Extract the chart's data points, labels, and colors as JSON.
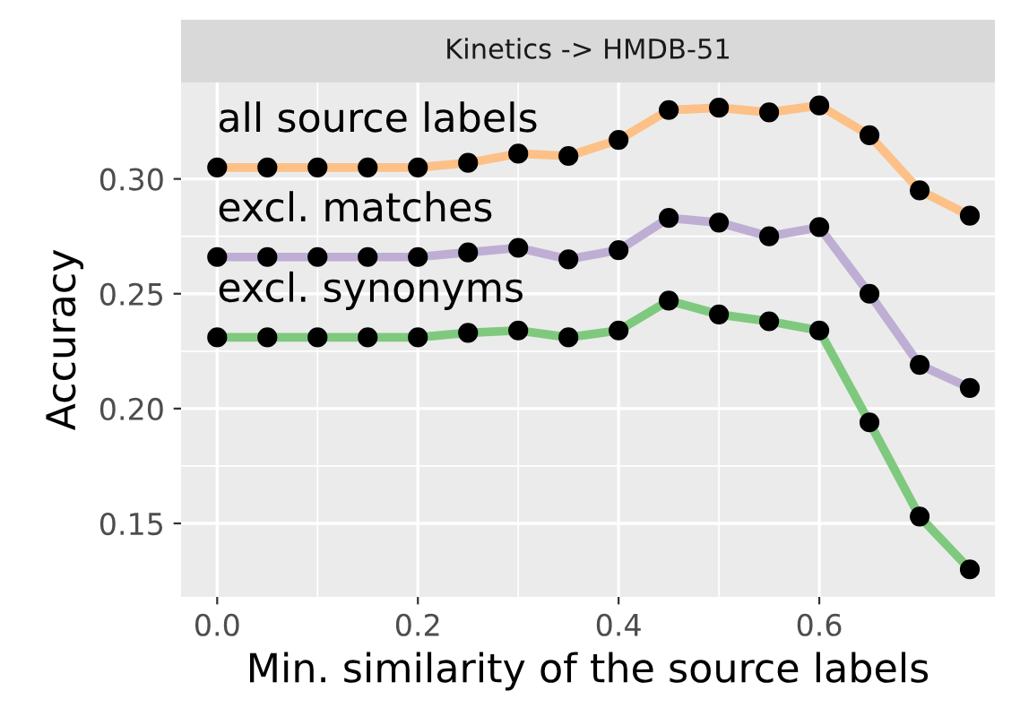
{
  "chart_data": {
    "type": "line",
    "title": "Kinetics -> HMDB-51",
    "xlabel": "Min. similarity of the source labels",
    "ylabel": "Accuracy",
    "x": [
      0,
      0.05,
      0.1,
      0.15,
      0.2,
      0.25,
      0.3,
      0.35,
      0.4,
      0.45,
      0.5,
      0.55,
      0.6,
      0.65,
      0.7,
      0.75
    ],
    "series": [
      {
        "name": "all source labels",
        "color": "#fdc086",
        "values": [
          0.305,
          0.305,
          0.305,
          0.305,
          0.305,
          0.307,
          0.311,
          0.31,
          0.317,
          0.33,
          0.331,
          0.329,
          0.332,
          0.319,
          0.295,
          0.284
        ]
      },
      {
        "name": "excl. matches",
        "color": "#beaed4",
        "values": [
          0.266,
          0.266,
          0.266,
          0.266,
          0.266,
          0.268,
          0.27,
          0.265,
          0.269,
          0.283,
          0.281,
          0.275,
          0.279,
          0.25,
          0.219,
          0.209
        ]
      },
      {
        "name": "excl. synonyms",
        "color": "#7fc97f",
        "values": [
          0.231,
          0.231,
          0.231,
          0.231,
          0.231,
          0.233,
          0.234,
          0.231,
          0.234,
          0.247,
          0.241,
          0.238,
          0.234,
          0.194,
          0.153,
          0.13
        ]
      }
    ],
    "xlim": [
      -0.036,
      0.775
    ],
    "ylim": [
      0.118,
      0.342
    ],
    "xticks": [
      {
        "value": 0,
        "label": "0.0"
      },
      0.2,
      0.4,
      0.6
    ],
    "yticks": [
      0.15,
      {
        "value": 0.2,
        "label": "0.20"
      },
      0.25,
      {
        "value": 0.3,
        "label": "0.30"
      }
    ],
    "grid": true,
    "marker": "circle",
    "legend": false
  }
}
